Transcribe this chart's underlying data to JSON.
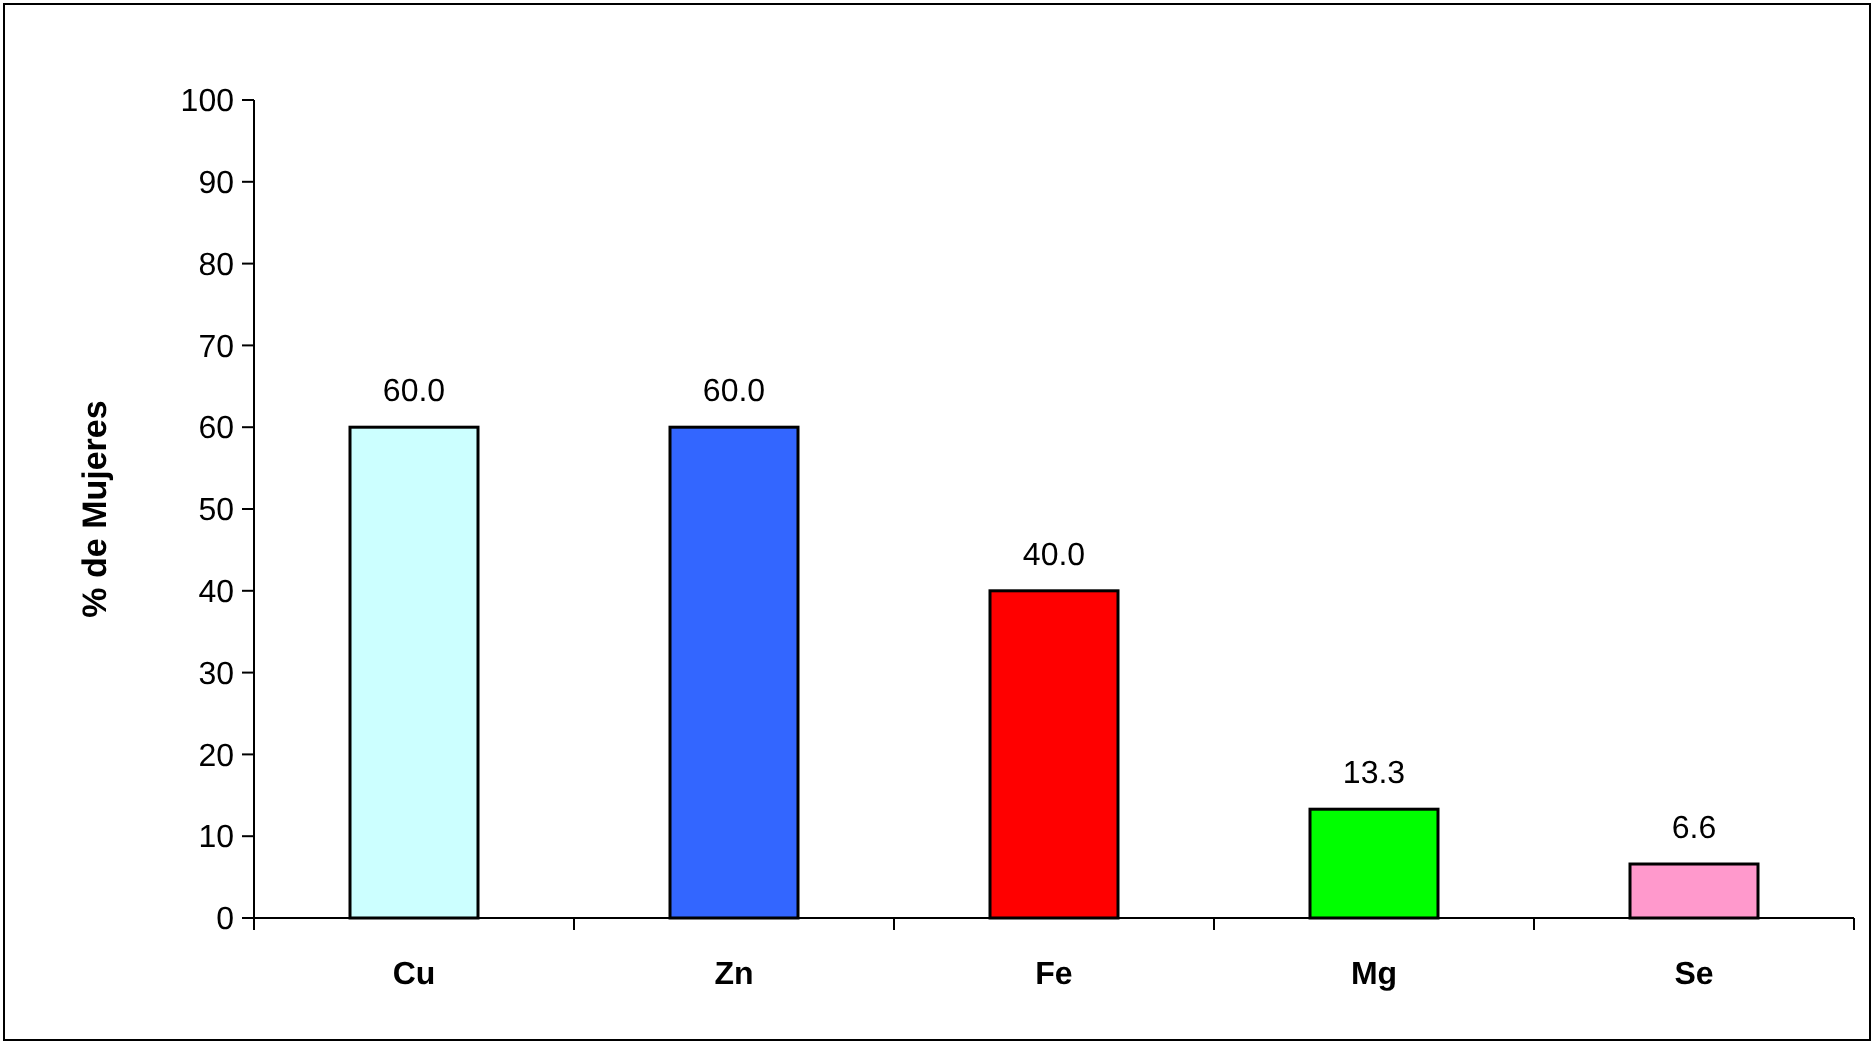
{
  "chart_data": {
    "type": "bar",
    "ylabel": "% de Mujeres",
    "categories": [
      "Cu",
      "Zn",
      "Fe",
      "Mg",
      "Se"
    ],
    "values": [
      60.0,
      60.0,
      40.0,
      13.3,
      6.6
    ],
    "colors": [
      "#ccffff",
      "#3366ff",
      "#ff0000",
      "#00ff00",
      "#ff99cc"
    ],
    "value_labels": [
      "60.0",
      "60.0",
      "40.0",
      "13.3",
      "6.6"
    ],
    "ylim": [
      0,
      100
    ],
    "yticks": [
      0,
      10,
      20,
      30,
      40,
      50,
      60,
      70,
      80,
      90,
      100
    ],
    "grid": false
  }
}
